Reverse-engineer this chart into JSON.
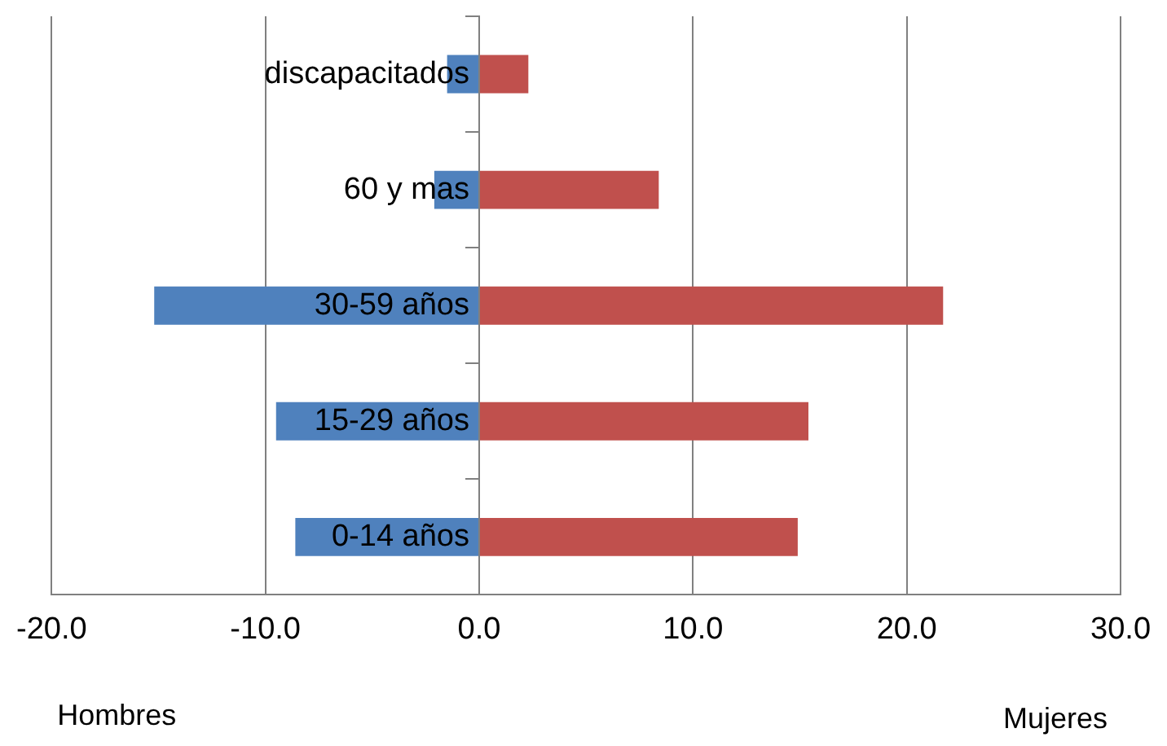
{
  "chart_data": {
    "type": "bar",
    "orientation": "horizontal",
    "stacked": true,
    "categories": [
      "discapacitados",
      "60 y mas",
      "30-59 años",
      "15-29 años",
      "0-14 años"
    ],
    "series": [
      {
        "color": "#4f81bd",
        "values": [
          -1.5,
          -2.1,
          -15.2,
          -9.5,
          -8.6
        ]
      },
      {
        "color": "#c0504d",
        "values": [
          2.3,
          8.4,
          21.7,
          15.4,
          14.9
        ]
      }
    ],
    "xlim": [
      -20,
      30
    ],
    "xticks": [
      {
        "value": -20,
        "label": "-20.0"
      },
      {
        "value": -10,
        "label": "-10.0"
      },
      {
        "value": 0,
        "label": "0.0"
      },
      {
        "value": 10,
        "label": "10.0"
      },
      {
        "value": 20,
        "label": "20.0"
      },
      {
        "value": 30,
        "label": "30.0"
      }
    ],
    "grid": "x",
    "annotations": [
      "Hombres",
      "Mujeres"
    ]
  }
}
